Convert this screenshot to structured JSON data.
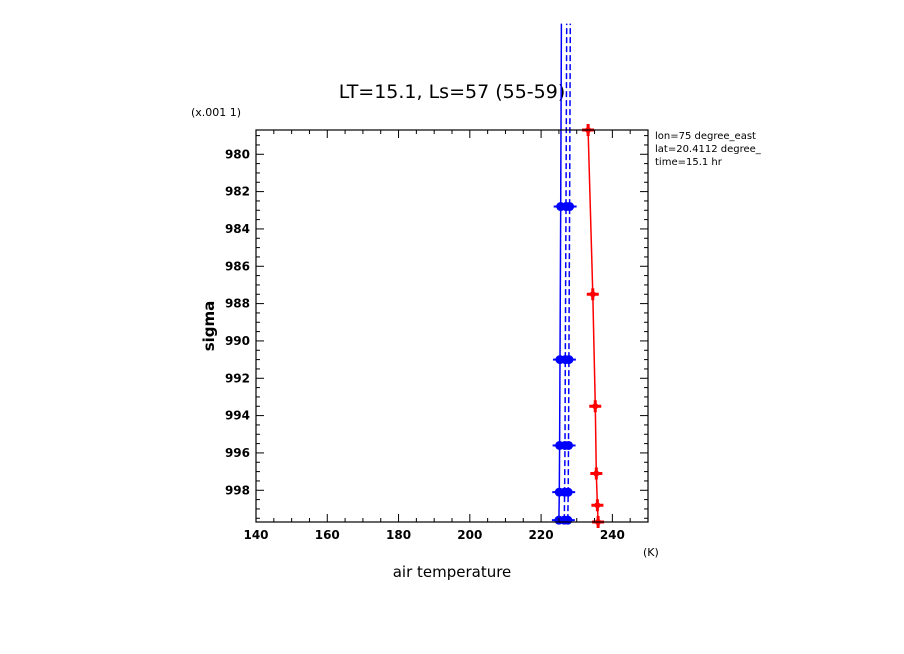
{
  "chart_data": {
    "type": "line",
    "title": "LT=15.1, Ls=57 (55-59)",
    "xlabel": "air temperature",
    "x_unit": "(K)",
    "ylabel": "sigma",
    "y_multiplier": "(x.001 1)",
    "xlim": [
      140,
      250
    ],
    "ylim": [
      999.7,
      978.7
    ],
    "xticks": [
      140,
      160,
      180,
      200,
      220,
      240
    ],
    "yticks": [
      980,
      982,
      984,
      986,
      988,
      990,
      992,
      994,
      996,
      998
    ],
    "info_lines": [
      "lon=75 degree_east",
      "lat=20.4112 degree_",
      "time=15.1 hr"
    ],
    "series": [
      {
        "color": "#0000ff",
        "style": "solid",
        "marker": "dot",
        "points": [
          [
            225.0,
            999.6
          ],
          [
            225.1,
            998.1
          ],
          [
            225.2,
            995.6
          ],
          [
            225.3,
            991.0
          ],
          [
            225.5,
            982.8
          ],
          [
            225.7,
            973.0
          ]
        ]
      },
      {
        "color": "#0000ff",
        "style": "dash",
        "marker": "dot",
        "points": [
          [
            226.5,
            999.6
          ],
          [
            226.6,
            998.1
          ],
          [
            226.7,
            995.6
          ],
          [
            226.8,
            991.0
          ],
          [
            227.0,
            982.8
          ],
          [
            227.2,
            973.0
          ]
        ]
      },
      {
        "color": "#0000ff",
        "style": "dash",
        "marker": "dot",
        "points": [
          [
            227.5,
            999.6
          ],
          [
            227.6,
            998.1
          ],
          [
            227.7,
            995.6
          ],
          [
            227.8,
            991.0
          ],
          [
            228.0,
            982.8
          ],
          [
            228.2,
            973.0
          ]
        ]
      },
      {
        "color": "#ff0000",
        "style": "solid",
        "marker": "plus",
        "points": [
          [
            236.0,
            999.7
          ],
          [
            235.8,
            998.8
          ],
          [
            235.5,
            997.1
          ],
          [
            235.2,
            993.5
          ],
          [
            234.5,
            987.5
          ],
          [
            233.2,
            978.7
          ]
        ]
      }
    ]
  }
}
